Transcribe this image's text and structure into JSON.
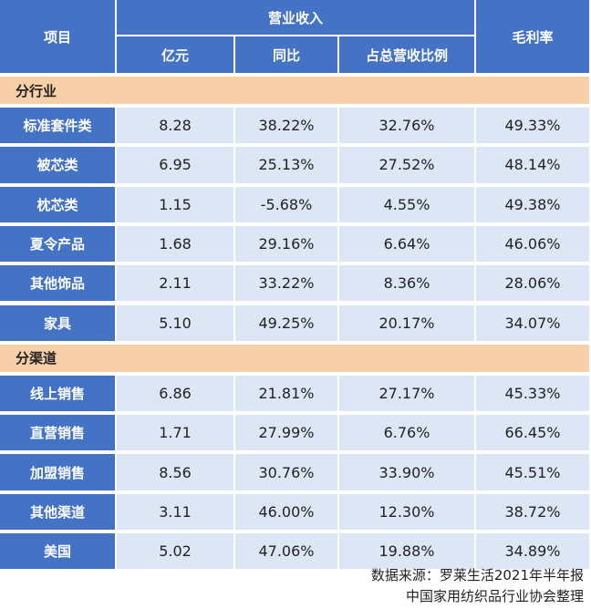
{
  "chart_data": {
    "type": "table",
    "header": {
      "item": "项目",
      "revenue_group": "营业收入",
      "revenue": "亿元",
      "yoy": "同比",
      "share": "占总营收比例",
      "gross_margin": "毛利率"
    },
    "sections": [
      {
        "title": "分行业",
        "rows": [
          {
            "name": "标准套件类",
            "revenue": "8.28",
            "yoy": "38.22%",
            "share": "32.76%",
            "margin": "49.33%"
          },
          {
            "name": "被芯类",
            "revenue": "6.95",
            "yoy": "25.13%",
            "share": "27.52%",
            "margin": "48.14%"
          },
          {
            "name": "枕芯类",
            "revenue": "1.15",
            "yoy": "-5.68%",
            "share": "4.55%",
            "margin": "49.38%"
          },
          {
            "name": "夏令产品",
            "revenue": "1.68",
            "yoy": "29.16%",
            "share": "6.64%",
            "margin": "46.06%"
          },
          {
            "name": "其他饰品",
            "revenue": "2.11",
            "yoy": "33.22%",
            "share": "8.36%",
            "margin": "28.06%"
          },
          {
            "name": "家具",
            "revenue": "5.10",
            "yoy": "49.25%",
            "share": "20.17%",
            "margin": "34.07%"
          }
        ]
      },
      {
        "title": "分渠道",
        "rows": [
          {
            "name": "线上销售",
            "revenue": "6.86",
            "yoy": "21.81%",
            "share": "27.17%",
            "margin": "45.33%"
          },
          {
            "name": "直营销售",
            "revenue": "1.71",
            "yoy": "27.99%",
            "share": "6.76%",
            "margin": "66.45%"
          },
          {
            "name": "加盟销售",
            "revenue": "8.56",
            "yoy": "30.76%",
            "share": "33.90%",
            "margin": "45.51%"
          },
          {
            "name": "其他渠道",
            "revenue": "3.11",
            "yoy": "46.00%",
            "share": "12.30%",
            "margin": "38.72%"
          },
          {
            "name": "美国",
            "revenue": "5.02",
            "yoy": "47.06%",
            "share": "19.88%",
            "margin": "34.89%"
          }
        ]
      }
    ]
  },
  "source": {
    "line1": "数据来源：罗莱生活2021年半年报",
    "line2": "中国家用纺织品行业协会整理"
  },
  "colors": {
    "header": "#4472c4",
    "value_cell": "#dce6f5",
    "section_band": "#f7cfa8"
  }
}
